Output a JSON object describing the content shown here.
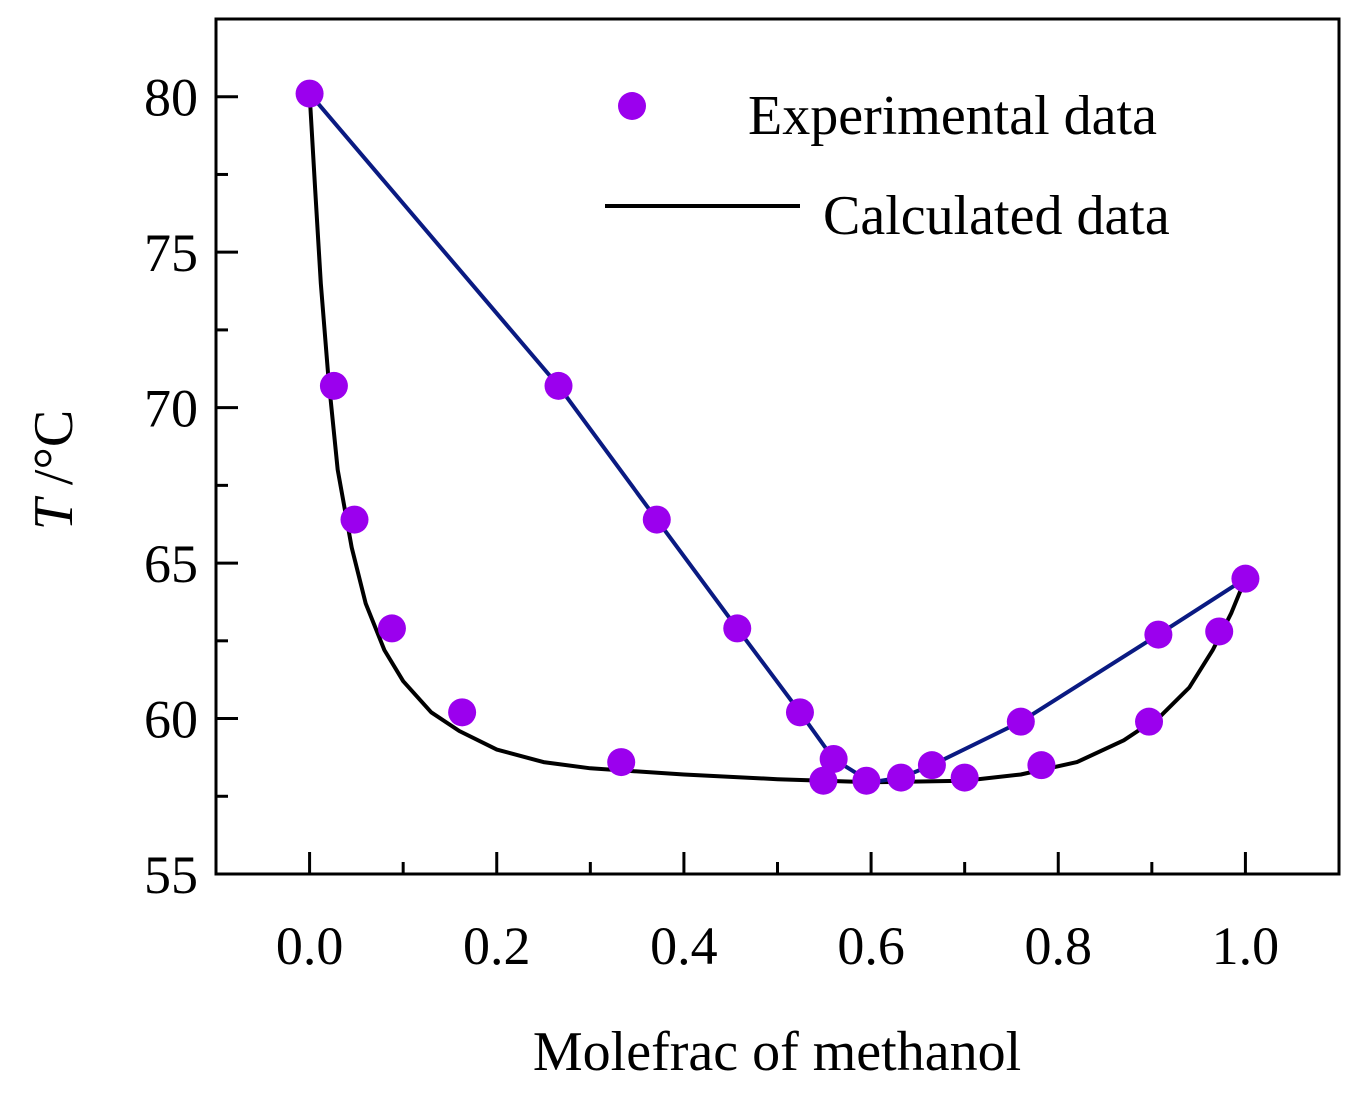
{
  "chart_data": {
    "type": "scatter",
    "xlabel": "Molefrac of methanol",
    "ylabel_symbol": "T",
    "ylabel_unit": " /°C",
    "xlim": [
      -0.1,
      1.1
    ],
    "ylim": [
      55,
      82.5
    ],
    "x_ticks": [
      0.0,
      0.2,
      0.4,
      0.6,
      0.8,
      1.0
    ],
    "x_tick_labels": [
      "0.0",
      "0.2",
      "0.4",
      "0.6",
      "0.8",
      "1.0"
    ],
    "x_minor_ticks": [
      0.1,
      0.3,
      0.5,
      0.7,
      0.9
    ],
    "y_ticks": [
      55,
      60,
      65,
      70,
      75,
      80
    ],
    "y_tick_labels": [
      "55",
      "60",
      "65",
      "70",
      "75",
      "80"
    ],
    "y_minor_ticks": [
      57.5,
      62.5,
      67.5,
      72.5,
      77.5
    ],
    "legend": [
      {
        "label": "Experimental data",
        "marker": "circle",
        "color": "#9b00ee"
      },
      {
        "label": "Calculated data",
        "marker": "line",
        "color": "#000000"
      }
    ],
    "legend_position": "top-right",
    "colors": {
      "experimental": "#9b00ee",
      "liquid_line": "#000000",
      "vapor_line": "#0a1a82",
      "axis": "#000000"
    },
    "series": [
      {
        "name": "Experimental data",
        "kind": "scatter",
        "points": [
          [
            0.0,
            80.1
          ],
          [
            0.026,
            70.7
          ],
          [
            0.048,
            66.4
          ],
          [
            0.088,
            62.9
          ],
          [
            0.163,
            60.2
          ],
          [
            0.333,
            58.6
          ],
          [
            0.549,
            58.0
          ],
          [
            0.595,
            58.0
          ],
          [
            0.632,
            58.1
          ],
          [
            0.7,
            58.1
          ],
          [
            0.782,
            58.5
          ],
          [
            0.897,
            59.9
          ],
          [
            0.972,
            62.8
          ],
          [
            1.0,
            64.5
          ],
          [
            0.266,
            70.7
          ],
          [
            0.371,
            66.4
          ],
          [
            0.457,
            62.9
          ],
          [
            0.524,
            60.2
          ],
          [
            0.56,
            58.7
          ],
          [
            0.665,
            58.5
          ],
          [
            0.76,
            59.9
          ],
          [
            0.907,
            62.7
          ]
        ]
      },
      {
        "name": "Calculated data (liquid)",
        "kind": "line",
        "points": [
          [
            0.0,
            80.1
          ],
          [
            0.006,
            77.0
          ],
          [
            0.012,
            74.0
          ],
          [
            0.02,
            71.0
          ],
          [
            0.03,
            68.0
          ],
          [
            0.045,
            65.5
          ],
          [
            0.06,
            63.7
          ],
          [
            0.08,
            62.2
          ],
          [
            0.1,
            61.2
          ],
          [
            0.13,
            60.2
          ],
          [
            0.16,
            59.6
          ],
          [
            0.2,
            59.0
          ],
          [
            0.25,
            58.6
          ],
          [
            0.3,
            58.4
          ],
          [
            0.4,
            58.2
          ],
          [
            0.5,
            58.05
          ],
          [
            0.6,
            57.95
          ],
          [
            0.7,
            58.0
          ],
          [
            0.76,
            58.2
          ],
          [
            0.82,
            58.6
          ],
          [
            0.87,
            59.3
          ],
          [
            0.91,
            60.1
          ],
          [
            0.94,
            61.0
          ],
          [
            0.965,
            62.2
          ],
          [
            0.985,
            63.4
          ],
          [
            1.0,
            64.5
          ]
        ]
      },
      {
        "name": "Calculated data (vapor)",
        "kind": "line",
        "points": [
          [
            0.0,
            80.1
          ],
          [
            0.266,
            70.7
          ],
          [
            0.371,
            66.4
          ],
          [
            0.457,
            62.9
          ],
          [
            0.524,
            60.2
          ],
          [
            0.56,
            58.7
          ],
          [
            0.6,
            57.95
          ],
          [
            0.632,
            58.1
          ],
          [
            0.665,
            58.5
          ],
          [
            0.76,
            59.9
          ],
          [
            0.907,
            62.7
          ],
          [
            1.0,
            64.5
          ]
        ]
      }
    ]
  }
}
